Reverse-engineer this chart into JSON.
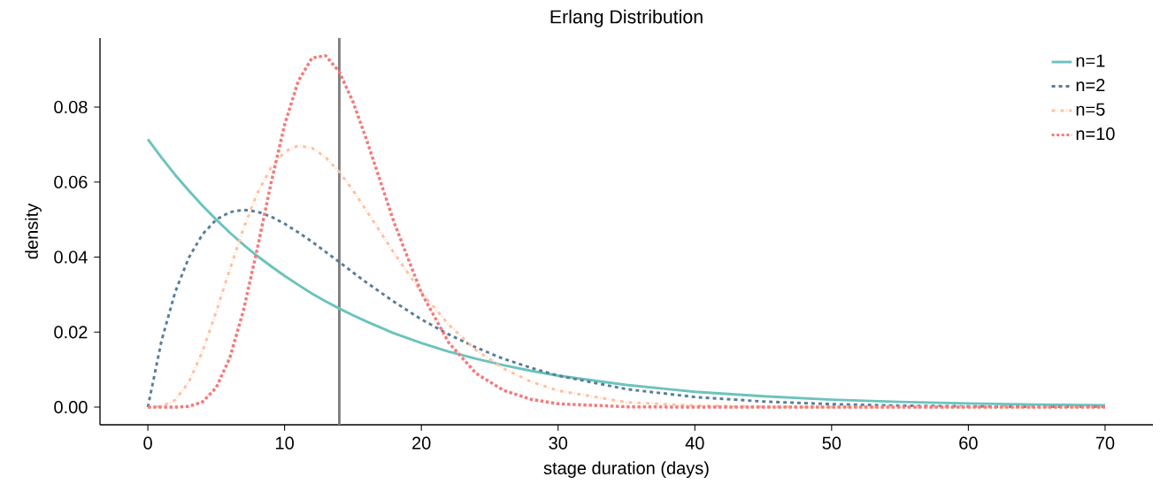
{
  "chart_data": {
    "type": "line",
    "title": "Erlang Distribution",
    "xlabel": "stage duration (days)",
    "ylabel": "density",
    "x": [
      0,
      1,
      2,
      3,
      4,
      5,
      6,
      7,
      8,
      9,
      10,
      11,
      12,
      13,
      14,
      15,
      16,
      18,
      20,
      22,
      24,
      26,
      28,
      30,
      35,
      40,
      45,
      50,
      55,
      60,
      65,
      70
    ],
    "series": [
      {
        "name": "n=1",
        "color": "#6cc3bd",
        "line_style": "solid",
        "values": [
          0.0714,
          0.0665,
          0.0619,
          0.0577,
          0.0537,
          0.05,
          0.0465,
          0.0433,
          0.0403,
          0.0376,
          0.035,
          0.0326,
          0.0303,
          0.0282,
          0.0263,
          0.0245,
          0.0228,
          0.0197,
          0.0171,
          0.0148,
          0.0129,
          0.0112,
          0.0097,
          0.0084,
          0.0059,
          0.0041,
          0.0029,
          0.002,
          0.0014,
          0.001,
          0.0007,
          0.0005
        ]
      },
      {
        "name": "n=2",
        "color": "#5a7d9a",
        "line_style": "dashed",
        "values": [
          0.0,
          0.0177,
          0.0307,
          0.0399,
          0.0461,
          0.05,
          0.052,
          0.0526,
          0.0521,
          0.0508,
          0.0489,
          0.0466,
          0.0441,
          0.0414,
          0.0387,
          0.0359,
          0.0332,
          0.0281,
          0.0234,
          0.0194,
          0.0159,
          0.0129,
          0.0105,
          0.0084,
          0.0048,
          0.0027,
          0.0015,
          0.0008,
          0.0004,
          0.0002,
          0.0001,
          0.0001
        ]
      },
      {
        "name": "n=5",
        "color": "#ffc1a1",
        "line_style": "dashdot",
        "values": [
          0.0,
          0.0002,
          0.0019,
          0.0067,
          0.0149,
          0.0254,
          0.0368,
          0.0477,
          0.057,
          0.0638,
          0.0681,
          0.0697,
          0.0691,
          0.0666,
          0.0627,
          0.0578,
          0.0523,
          0.0411,
          0.0306,
          0.022,
          0.0152,
          0.0103,
          0.0068,
          0.0044,
          0.0013,
          0.0004,
          0.0001,
          0.0,
          0.0,
          0.0,
          0.0,
          0.0
        ]
      },
      {
        "name": "n=10",
        "color": "#f47a7a",
        "line_style": "dotted",
        "values": [
          0.0,
          0.0,
          0.0,
          0.0002,
          0.0014,
          0.0052,
          0.0132,
          0.0259,
          0.0422,
          0.0596,
          0.0753,
          0.0869,
          0.0931,
          0.0937,
          0.0894,
          0.0814,
          0.0712,
          0.0493,
          0.0305,
          0.0172,
          0.009,
          0.0045,
          0.0021,
          0.0009,
          0.0001,
          0.0,
          0.0,
          0.0,
          0.0,
          0.0,
          0.0,
          0.0
        ]
      }
    ],
    "ref_lines": [
      {
        "axis": "x",
        "value": 14,
        "color": "#808080"
      }
    ],
    "xlim": [
      -3.5,
      73.5
    ],
    "ylim": [
      -0.0047,
      0.0984
    ],
    "xticks": [
      0,
      10,
      20,
      30,
      40,
      50,
      60,
      70
    ],
    "yticks": [
      {
        "value": 0,
        "label": "0.00"
      },
      {
        "value": 0.02,
        "label": "0.02"
      },
      {
        "value": 0.04,
        "label": "0.04"
      },
      {
        "value": 0.06,
        "label": "0.06"
      },
      {
        "value": 0.08,
        "label": "0.08"
      }
    ],
    "legend": "top right",
    "grid": false
  }
}
